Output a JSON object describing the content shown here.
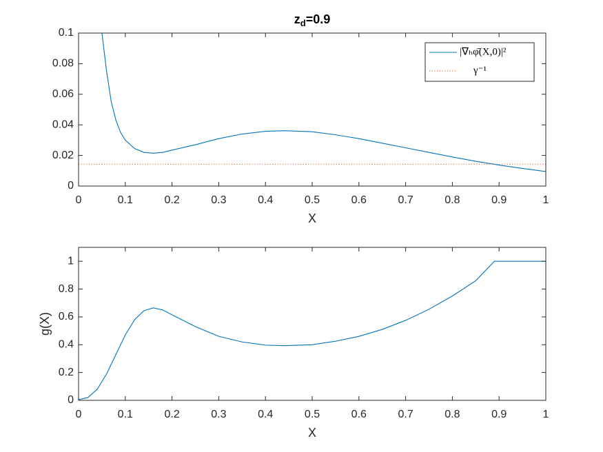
{
  "chart_data": [
    {
      "type": "line",
      "title": {
        "main": "z",
        "subscript": "d",
        "suffix": "=0.9"
      },
      "x_label": "X",
      "xlim": [
        0,
        1
      ],
      "xticks": [
        0,
        0.1,
        0.2,
        0.3,
        0.4,
        0.5,
        0.6,
        0.7,
        0.8,
        0.9,
        1
      ],
      "ylim": [
        0,
        0.1
      ],
      "yticks": [
        0,
        0.02,
        0.04,
        0.06,
        0.08,
        0.1
      ],
      "legend": "upper right",
      "series": [
        {
          "name": "|∇ₕφ̄(X,0)|²",
          "color": "#0072bd",
          "style": "solid",
          "x": [
            0.05,
            0.06,
            0.07,
            0.08,
            0.09,
            0.1,
            0.12,
            0.14,
            0.16,
            0.18,
            0.2,
            0.25,
            0.3,
            0.35,
            0.4,
            0.44,
            0.5,
            0.55,
            0.6,
            0.65,
            0.7,
            0.75,
            0.8,
            0.85,
            0.9,
            0.95,
            1.0
          ],
          "values": [
            0.1,
            0.075,
            0.055,
            0.043,
            0.035,
            0.03,
            0.0245,
            0.022,
            0.0215,
            0.022,
            0.0235,
            0.027,
            0.031,
            0.034,
            0.0358,
            0.0362,
            0.0355,
            0.0335,
            0.031,
            0.028,
            0.025,
            0.022,
            0.019,
            0.0162,
            0.0137,
            0.0115,
            0.0095
          ]
        },
        {
          "name": "γ⁻¹",
          "color": "#d95319",
          "style": "dotted",
          "x": [
            0,
            1
          ],
          "values": [
            0.0143,
            0.0143
          ]
        }
      ]
    },
    {
      "type": "line",
      "x_label": "X",
      "y_label": "g(X)",
      "xlim": [
        0,
        1
      ],
      "xticks": [
        0,
        0.1,
        0.2,
        0.3,
        0.4,
        0.5,
        0.6,
        0.7,
        0.8,
        0.9,
        1
      ],
      "ylim": [
        0,
        1.1
      ],
      "yticks": [
        0,
        0.2,
        0.4,
        0.6,
        0.8,
        1
      ],
      "series": [
        {
          "color": "#0072bd",
          "style": "solid",
          "x": [
            0,
            0.02,
            0.04,
            0.06,
            0.08,
            0.1,
            0.12,
            0.14,
            0.16,
            0.18,
            0.2,
            0.25,
            0.3,
            0.35,
            0.4,
            0.44,
            0.5,
            0.55,
            0.6,
            0.65,
            0.7,
            0.75,
            0.8,
            0.85,
            0.89,
            0.9,
            1.0
          ],
          "values": [
            0.005,
            0.02,
            0.08,
            0.19,
            0.33,
            0.47,
            0.58,
            0.645,
            0.665,
            0.65,
            0.615,
            0.53,
            0.46,
            0.42,
            0.397,
            0.393,
            0.4,
            0.425,
            0.46,
            0.51,
            0.575,
            0.655,
            0.75,
            0.86,
            1.0,
            1.0,
            1.0
          ]
        }
      ]
    }
  ]
}
